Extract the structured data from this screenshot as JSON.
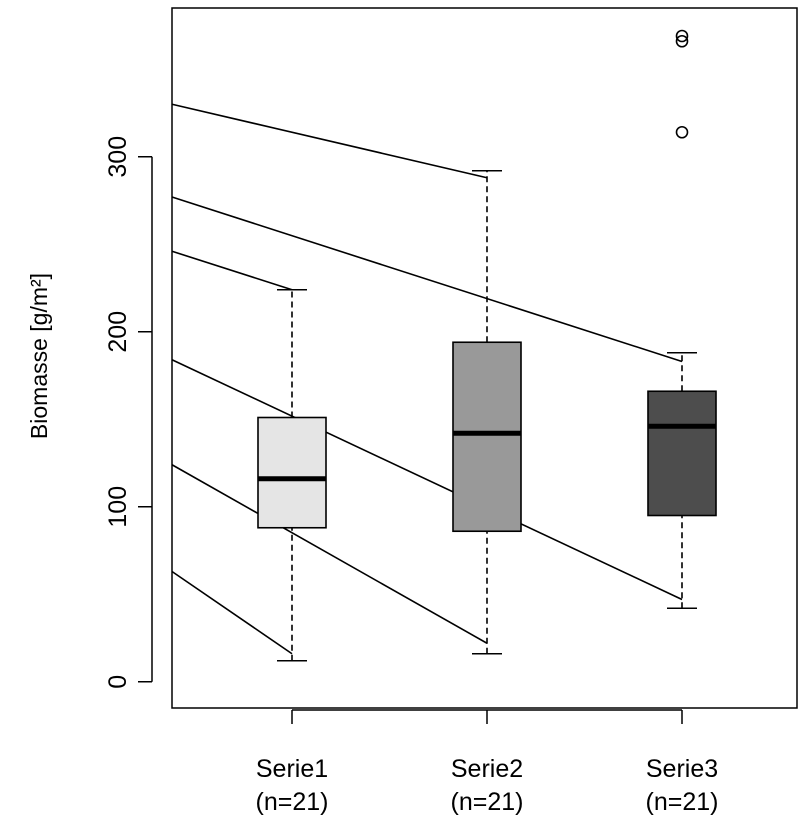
{
  "chart_data": {
    "type": "boxplot",
    "title": "",
    "xlabel": "",
    "ylabel": "Biomasse [g/m²]",
    "ylim": [
      -15,
      385
    ],
    "yticks": [
      0,
      100,
      200,
      300
    ],
    "grid": false,
    "legend": "none",
    "categories": [
      {
        "name": "Serie1",
        "n_label": "(n=21)"
      },
      {
        "name": "Serie2",
        "n_label": "(n=21)"
      },
      {
        "name": "Serie3",
        "n_label": "(n=21)"
      }
    ],
    "boxes": [
      {
        "whisker_low": 12,
        "q1": 88,
        "median": 116,
        "q3": 151,
        "whisker_high": 224,
        "outliers": [],
        "fill": "#e5e5e5"
      },
      {
        "whisker_low": 16,
        "q1": 86,
        "median": 142,
        "q3": 194,
        "whisker_high": 292,
        "outliers": [],
        "fill": "#999999"
      },
      {
        "whisker_low": 42,
        "q1": 95,
        "median": 146,
        "q3": 166,
        "whisker_high": 188,
        "outliers": [
          314,
          366,
          369
        ],
        "fill": "#4d4d4d"
      }
    ],
    "reference_lines": [
      {
        "x": [
          0.0,
          1.0
        ],
        "y": [
          63,
          16
        ]
      },
      {
        "x": [
          0.0,
          2.0
        ],
        "y": [
          124,
          22
        ]
      },
      {
        "x": [
          0.0,
          3.0
        ],
        "y": [
          184,
          47
        ]
      },
      {
        "x": [
          0.0,
          1.0
        ],
        "y": [
          246,
          224
        ]
      },
      {
        "x": [
          0.0,
          3.0
        ],
        "y": [
          277,
          183
        ]
      },
      {
        "x": [
          0.0,
          2.0
        ],
        "y": [
          330,
          288
        ]
      }
    ]
  }
}
